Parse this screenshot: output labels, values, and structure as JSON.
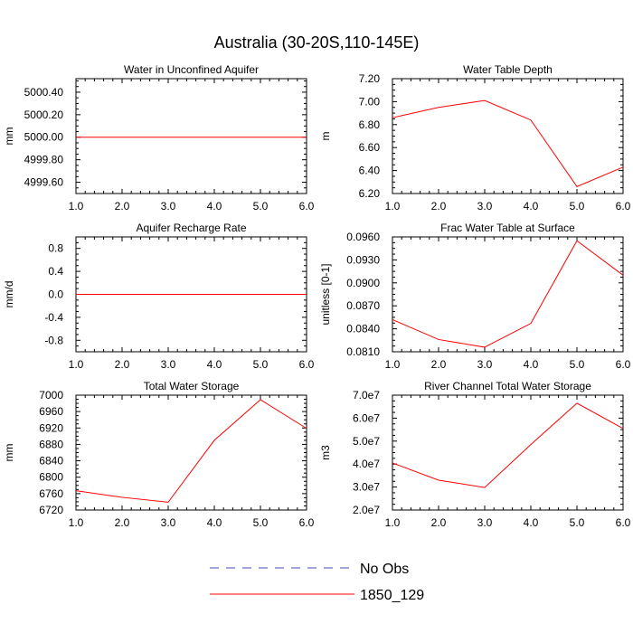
{
  "figure_title": "Australia (30-20S,110-145E)",
  "chart_data": [
    {
      "type": "line",
      "title": "Water in Unconfined Aquifer",
      "xlabel": "",
      "ylabel": "mm",
      "xlim": [
        1.0,
        6.0
      ],
      "ylim": [
        4999.5,
        5000.52
      ],
      "x": [
        1,
        2,
        3,
        4,
        5,
        6
      ],
      "xticks": [
        "1.0",
        "2.0",
        "3.0",
        "4.0",
        "5.0",
        "6.0"
      ],
      "yticks": [
        {
          "v": 4999.6,
          "label": "4999.60"
        },
        {
          "v": 4999.8,
          "label": "4999.80"
        },
        {
          "v": 5000.0,
          "label": "5000.00"
        },
        {
          "v": 5000.2,
          "label": "5000.20"
        },
        {
          "v": 5000.4,
          "label": "5000.40"
        }
      ],
      "series": [
        {
          "name": "1850_129",
          "values": [
            5000.0,
            5000.0,
            5000.0,
            5000.0,
            5000.0,
            5000.0
          ]
        }
      ]
    },
    {
      "type": "line",
      "title": "Water Table Depth",
      "xlabel": "",
      "ylabel": "m",
      "xlim": [
        1.0,
        6.0
      ],
      "ylim": [
        6.2,
        7.2
      ],
      "x": [
        1,
        2,
        3,
        4,
        5,
        6
      ],
      "xticks": [
        "1.0",
        "2.0",
        "3.0",
        "4.0",
        "5.0",
        "6.0"
      ],
      "yticks": [
        {
          "v": 6.2,
          "label": "6.20"
        },
        {
          "v": 6.4,
          "label": "6.40"
        },
        {
          "v": 6.6,
          "label": "6.60"
        },
        {
          "v": 6.8,
          "label": "6.80"
        },
        {
          "v": 7.0,
          "label": "7.00"
        },
        {
          "v": 7.2,
          "label": "7.20"
        }
      ],
      "series": [
        {
          "name": "1850_129",
          "values": [
            6.86,
            6.95,
            7.01,
            6.84,
            6.26,
            6.43
          ]
        }
      ]
    },
    {
      "type": "line",
      "title": "Aquifer Recharge Rate",
      "xlabel": "",
      "ylabel": "mm/d",
      "xlim": [
        1.0,
        6.0
      ],
      "ylim": [
        -1.0,
        1.0
      ],
      "x": [
        1,
        2,
        3,
        4,
        5,
        6
      ],
      "xticks": [
        "1.0",
        "2.0",
        "3.0",
        "4.0",
        "5.0",
        "6.0"
      ],
      "yticks": [
        {
          "v": -0.8,
          "label": "-0.8"
        },
        {
          "v": -0.4,
          "label": "-0.4"
        },
        {
          "v": 0.0,
          "label": "0.0"
        },
        {
          "v": 0.4,
          "label": "0.4"
        },
        {
          "v": 0.8,
          "label": "0.8"
        }
      ],
      "series": [
        {
          "name": "1850_129",
          "values": [
            0.0,
            0.0,
            0.0,
            0.0,
            0.0,
            0.0
          ]
        }
      ]
    },
    {
      "type": "line",
      "title": "Frac Water Table at Surface",
      "xlabel": "",
      "ylabel": "unitless [0-1]",
      "xlim": [
        1.0,
        6.0
      ],
      "ylim": [
        0.081,
        0.096
      ],
      "x": [
        1,
        2,
        3,
        4,
        5,
        6
      ],
      "xticks": [
        "1.0",
        "2.0",
        "3.0",
        "4.0",
        "5.0",
        "6.0"
      ],
      "yticks": [
        {
          "v": 0.081,
          "label": "0.0810"
        },
        {
          "v": 0.084,
          "label": "0.0840"
        },
        {
          "v": 0.087,
          "label": "0.0870"
        },
        {
          "v": 0.09,
          "label": "0.0900"
        },
        {
          "v": 0.093,
          "label": "0.0930"
        },
        {
          "v": 0.096,
          "label": "0.0960"
        }
      ],
      "series": [
        {
          "name": "1850_129",
          "values": [
            0.0852,
            0.0826,
            0.0816,
            0.0847,
            0.0955,
            0.091
          ]
        }
      ]
    },
    {
      "type": "line",
      "title": "Total Water Storage",
      "xlabel": "",
      "ylabel": "mm",
      "xlim": [
        1.0,
        6.0
      ],
      "ylim": [
        6720,
        7000
      ],
      "x": [
        1,
        2,
        3,
        4,
        5,
        6
      ],
      "xticks": [
        "1.0",
        "2.0",
        "3.0",
        "4.0",
        "5.0",
        "6.0"
      ],
      "yticks": [
        {
          "v": 6720,
          "label": "6720"
        },
        {
          "v": 6760,
          "label": "6760"
        },
        {
          "v": 6800,
          "label": "6800"
        },
        {
          "v": 6840,
          "label": "6840"
        },
        {
          "v": 6880,
          "label": "6880"
        },
        {
          "v": 6920,
          "label": "6920"
        },
        {
          "v": 6960,
          "label": "6960"
        },
        {
          "v": 7000,
          "label": "7000"
        }
      ],
      "series": [
        {
          "name": "1850_129",
          "values": [
            6767,
            6751,
            6739,
            6890,
            6989,
            6919
          ]
        }
      ]
    },
    {
      "type": "line",
      "title": "River Channel Total Water Storage",
      "xlabel": "",
      "ylabel": "m3",
      "xlim": [
        1.0,
        6.0
      ],
      "ylim": [
        20000000,
        70000000
      ],
      "x": [
        1,
        2,
        3,
        4,
        5,
        6
      ],
      "xticks": [
        "1.0",
        "2.0",
        "3.0",
        "4.0",
        "5.0",
        "6.0"
      ],
      "yticks": [
        {
          "v": 20000000,
          "label": "2.0e7"
        },
        {
          "v": 30000000,
          "label": "3.0e7"
        },
        {
          "v": 40000000,
          "label": "4.0e7"
        },
        {
          "v": 50000000,
          "label": "5.0e7"
        },
        {
          "v": 60000000,
          "label": "6.0e7"
        },
        {
          "v": 70000000,
          "label": "7.0e7"
        }
      ],
      "series": [
        {
          "name": "1850_129",
          "values": [
            40500000,
            33000000,
            29800000,
            48500000,
            66500000,
            55500000
          ]
        }
      ]
    }
  ],
  "legend": [
    {
      "label": "No Obs",
      "color": "#4444bb",
      "style": "dashed"
    },
    {
      "label": "1850_129",
      "color": "#ff0000",
      "style": "solid"
    }
  ]
}
